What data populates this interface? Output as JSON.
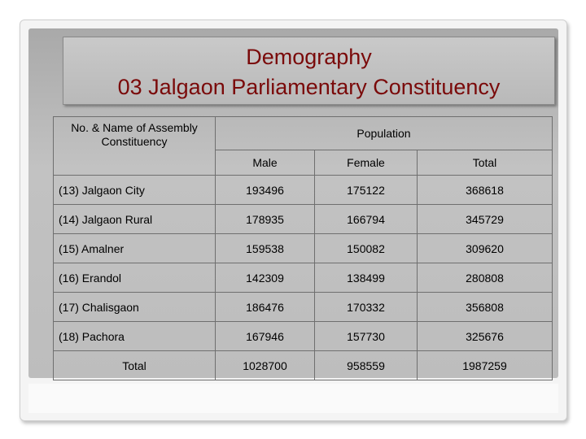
{
  "title": {
    "line1": "Demography",
    "line2": "03 Jalgaon Parliamentary Constituency"
  },
  "table": {
    "header_name": "No. & Name of Assembly Constituency",
    "header_population": "Population",
    "columns": [
      "Male",
      "Female",
      "Total"
    ],
    "rows": [
      {
        "name": "(13) Jalgaon City",
        "male": "193496",
        "female": "175122",
        "total": "368618"
      },
      {
        "name": "(14) Jalgaon Rural",
        "male": "178935",
        "female": "166794",
        "total": "345729"
      },
      {
        "name": "(15) Amalner",
        "male": "159538",
        "female": "150082",
        "total": "309620"
      },
      {
        "name": "(16) Erandol",
        "male": "142309",
        "female": "138499",
        "total": "280808"
      },
      {
        "name": "(17) Chalisgaon",
        "male": "186476",
        "female": "170332",
        "total": "356808"
      },
      {
        "name": "(18) Pachora",
        "male": "167946",
        "female": "157730",
        "total": "325676"
      }
    ],
    "total_row": {
      "label": "Total",
      "male": "1028700",
      "female": "958559",
      "total": "1987259"
    }
  },
  "colors": {
    "title_text": "#7a0a0a",
    "panel": "#bdbdbd"
  }
}
